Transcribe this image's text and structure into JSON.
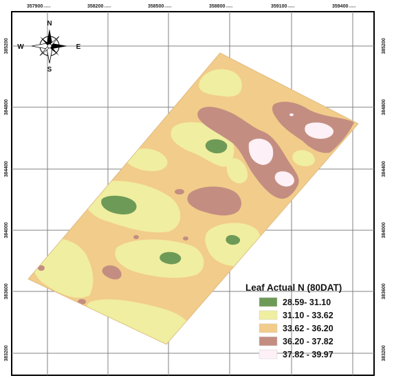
{
  "x_ticks": [
    "357900",
    "358200",
    "358500",
    "358800",
    "359100",
    "359400"
  ],
  "y_ticks": [
    "385200",
    "384800",
    "384400",
    "384000",
    "383600",
    "383200"
  ],
  "tick_suffix": "000000",
  "compass": {
    "n": "N",
    "s": "S",
    "e": "E",
    "w": "W"
  },
  "legend": {
    "title": "Leaf Actual N (80DAT)",
    "items": [
      {
        "label": "28.59- 31.10",
        "color": "#6e9a57"
      },
      {
        "label": "31.10 - 33.62",
        "color": "#f0eea0"
      },
      {
        "label": "33.62 - 36.20",
        "color": "#f2cc8a"
      },
      {
        "label": "36.20 - 37.82",
        "color": "#c38e81"
      },
      {
        "label": "37.82 - 39.97",
        "color": "#fdf0f6"
      }
    ]
  },
  "colors": {
    "grid": "#808080",
    "frame": "#000000",
    "class_1": "#6e9a57",
    "class_2": "#f0eea0",
    "class_3": "#f2cc8a",
    "class_4": "#c38e81",
    "class_5": "#fdf0f6"
  }
}
